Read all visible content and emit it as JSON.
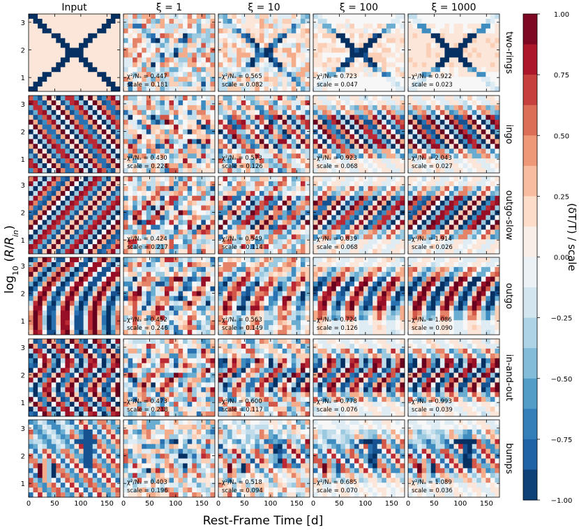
{
  "chart_data": {
    "type": "heatmap",
    "column_headers": [
      "Input",
      "ξ = 1",
      "ξ = 10",
      "ξ = 100",
      "ξ = 1000"
    ],
    "row_labels": [
      "two-rings",
      "ingo",
      "outgo-slow",
      "outgo",
      "in-and-out",
      "bumps"
    ],
    "xlabel": "Rest-Frame Time [d]",
    "ylabel": "log₁₀ (R/Rᵢₙ)",
    "xlim": [
      0,
      175
    ],
    "ylim": [
      0.5,
      3.3
    ],
    "x_ticks": [
      "0",
      "50",
      "100",
      "150"
    ],
    "y_ticks": [
      "1",
      "2",
      "3"
    ],
    "colorbar": {
      "label": "(δT/T) / scale",
      "vmin": -1.0,
      "vmax": 1.0,
      "ticks": [
        "1.00",
        "0.75",
        "0.50",
        "0.25",
        "0.00",
        "−0.25",
        "−0.50",
        "−0.75",
        "−1.00"
      ],
      "colors": [
        "#67001f",
        "#b2182b",
        "#d6604d",
        "#f4a582",
        "#fddbc7",
        "#f7f7f7",
        "#d1e5f0",
        "#92c5de",
        "#4393c3",
        "#2166ac",
        "#053061"
      ]
    },
    "chi2_label": "χ²/Nₐ",
    "scale_label": "scale",
    "stats": [
      {
        "row": "two-rings",
        "chi2": [
          "0.447",
          "0.565",
          "0.723",
          "0.922"
        ],
        "scale": [
          "0.181",
          "0.082",
          "0.047",
          "0.023"
        ]
      },
      {
        "row": "ingo",
        "chi2": [
          "0.430",
          "0.573",
          "0.923",
          "2.043"
        ],
        "scale": [
          "0.224",
          "0.126",
          "0.068",
          "0.027"
        ]
      },
      {
        "row": "outgo-slow",
        "chi2": [
          "0.424",
          "0.549",
          "0.839",
          "1.914"
        ],
        "scale": [
          "0.217",
          "0.114",
          "0.068",
          "0.026"
        ]
      },
      {
        "row": "outgo",
        "chi2": [
          "0.452",
          "0.563",
          "0.724",
          "1.086"
        ],
        "scale": [
          "0.246",
          "0.149",
          "0.126",
          "0.090"
        ]
      },
      {
        "row": "in-and-out",
        "chi2": [
          "0.473",
          "0.600",
          "0.778",
          "0.993"
        ],
        "scale": [
          "0.218",
          "0.117",
          "0.076",
          "0.039"
        ]
      },
      {
        "row": "bumps",
        "chi2": [
          "0.403",
          "0.518",
          "0.685",
          "1.089"
        ],
        "scale": [
          "0.196",
          "0.094",
          "0.070",
          "0.036"
        ]
      }
    ]
  }
}
